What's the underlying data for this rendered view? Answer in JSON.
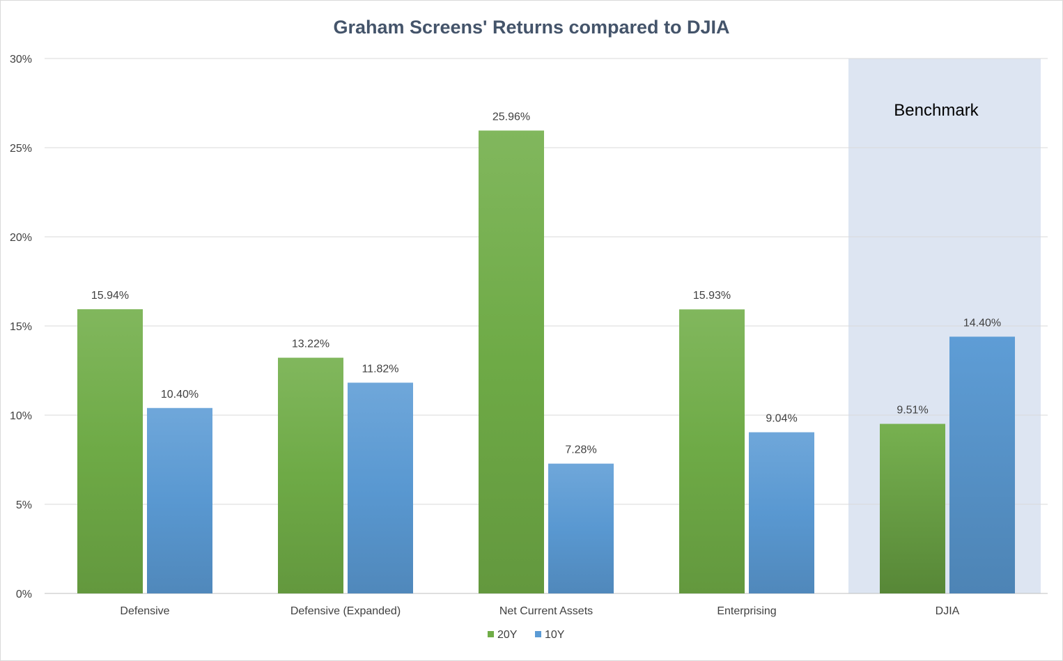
{
  "chart_data": {
    "type": "bar",
    "title": "Graham Screens' Returns compared to DJIA",
    "xlabel": "",
    "ylabel": "",
    "categories": [
      "Defensive",
      "Defensive (Expanded)",
      "Net Current Assets",
      "Enterprising",
      "DJIA"
    ],
    "series": [
      {
        "name": "20Y",
        "values": [
          15.94,
          13.22,
          25.96,
          15.93,
          9.51
        ],
        "labels": [
          "15.94%",
          "13.22%",
          "25.96%",
          "15.93%",
          "9.51%"
        ],
        "color": "#70ad47"
      },
      {
        "name": "10Y",
        "values": [
          10.4,
          11.82,
          7.28,
          9.04,
          14.4
        ],
        "labels": [
          "10.40%",
          "11.82%",
          "7.28%",
          "9.04%",
          "14.40%"
        ],
        "color": "#5b9bd5"
      }
    ],
    "ylim": [
      0,
      30
    ],
    "yticks": [
      0,
      5,
      10,
      15,
      20,
      25,
      30
    ],
    "ytick_labels": [
      "0%",
      "5%",
      "10%",
      "15%",
      "20%",
      "25%",
      "30%"
    ],
    "grid": true,
    "legend_position": "bottom",
    "annotation": {
      "text": "Benchmark",
      "category": "DJIA",
      "color": "#dde5f2"
    }
  }
}
